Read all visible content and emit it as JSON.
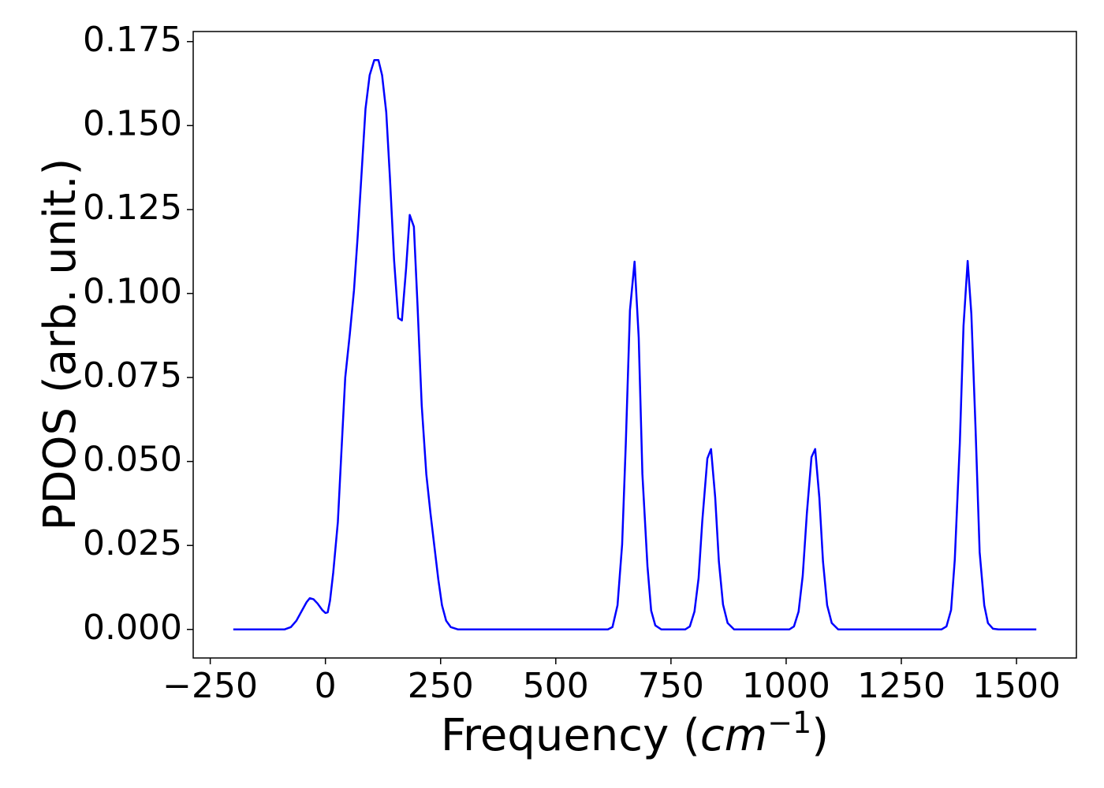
{
  "chart_data": {
    "type": "line",
    "ylabel": "PDOS (arb. unit.)",
    "xlabel": [
      "Frequency (",
      "cm",
      "−1",
      ")"
    ],
    "x": [
      -200,
      -89,
      -75,
      -63,
      -51,
      -41,
      -34,
      -26,
      -17,
      -7,
      0,
      5,
      10,
      17,
      27,
      34,
      43,
      53,
      62,
      70,
      79,
      87,
      96,
      106,
      115,
      123,
      132,
      140,
      149,
      158,
      166,
      175,
      183,
      192,
      200,
      209,
      219,
      228,
      236,
      245,
      253,
      262,
      272,
      288,
      613,
      623,
      634,
      644,
      652,
      661,
      671,
      680,
      688,
      699,
      707,
      716,
      729,
      781,
      791,
      801,
      810,
      818,
      829,
      837,
      846,
      854,
      863,
      873,
      887,
      1007,
      1017,
      1027,
      1036,
      1045,
      1055,
      1063,
      1072,
      1080,
      1089,
      1099,
      1113,
      1337,
      1348,
      1358,
      1366,
      1377,
      1385,
      1394,
      1402,
      1411,
      1420,
      1430,
      1438,
      1449,
      1461,
      1543
    ],
    "series": [
      {
        "color": "#0000ff",
        "values": [
          0,
          0,
          0.0007,
          0.0026,
          0.0056,
          0.0081,
          0.0093,
          0.009,
          0.0077,
          0.0058,
          0.0049,
          0.0051,
          0.0086,
          0.017,
          0.032,
          0.051,
          0.075,
          0.088,
          0.101,
          0.117,
          0.137,
          0.155,
          0.165,
          0.1695,
          0.1695,
          0.165,
          0.154,
          0.1345,
          0.11,
          0.0927,
          0.092,
          0.1073,
          0.1234,
          0.1199,
          0.0962,
          0.0667,
          0.0462,
          0.0346,
          0.0253,
          0.0149,
          0.0072,
          0.0026,
          0.0007,
          0,
          0,
          0.0007,
          0.0072,
          0.0253,
          0.0555,
          0.095,
          0.1095,
          0.0869,
          0.0462,
          0.0188,
          0.0056,
          0.0012,
          0,
          0,
          0.0009,
          0.0053,
          0.0153,
          0.0323,
          0.0509,
          0.0537,
          0.0393,
          0.0202,
          0.0074,
          0.0019,
          0,
          0,
          0.0009,
          0.0053,
          0.016,
          0.0346,
          0.0513,
          0.0537,
          0.0393,
          0.0202,
          0.0072,
          0.0019,
          0,
          0,
          0.0009,
          0.0058,
          0.0207,
          0.0555,
          0.0904,
          0.1097,
          0.0939,
          0.0602,
          0.023,
          0.0072,
          0.0019,
          0.0002,
          0,
          0
        ]
      }
    ],
    "xlim": [
      -287,
      1630
    ],
    "ylim": [
      -0.0085,
      0.178
    ],
    "xticks": [
      {
        "value": -250,
        "label": "−250"
      },
      0,
      250,
      500,
      750,
      1000,
      1250,
      1500
    ],
    "yticks": [
      {
        "value": 0,
        "label": "0.000"
      },
      {
        "value": 0.025,
        "label": "0.025"
      },
      {
        "value": 0.05,
        "label": "0.050"
      },
      {
        "value": 0.075,
        "label": "0.075"
      },
      {
        "value": 0.1,
        "label": "0.100"
      },
      {
        "value": 0.125,
        "label": "0.125"
      },
      {
        "value": 0.15,
        "label": "0.150"
      },
      {
        "value": 0.175,
        "label": "0.175"
      }
    ]
  }
}
